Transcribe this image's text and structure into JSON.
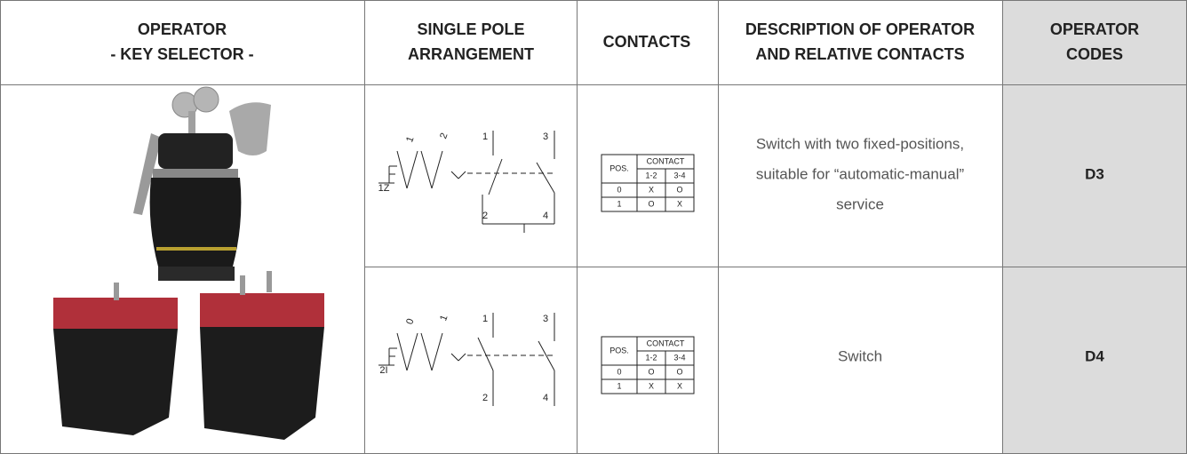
{
  "table": {
    "headers": [
      [
        "OPERATOR",
        "- KEY SELECTOR -"
      ],
      [
        "SINGLE POLE",
        "ARRANGEMENT"
      ],
      [
        "CONTACTS"
      ],
      [
        "DESCRIPTION OF OPERATOR",
        "AND RELATIVE CONTACTS"
      ],
      [
        "OPERATOR",
        "CODES"
      ]
    ],
    "rows": [
      {
        "arrangement": {
          "positions": [
            "1",
            "2"
          ],
          "code": "1Z",
          "terminals": [
            "1",
            "3",
            "2",
            "4"
          ]
        },
        "contacts": {
          "pos_header": "POS.",
          "contact_header": "CONTACT",
          "pairs": [
            "1-2",
            "3-4"
          ],
          "states": [
            [
              "0",
              "X",
              "O"
            ],
            [
              "1",
              "O",
              "X"
            ]
          ]
        },
        "description": [
          "Switch with two fixed-positions,",
          "suitable for “automatic-manual”",
          "service"
        ],
        "code": "D3"
      },
      {
        "arrangement": {
          "positions": [
            "0",
            "1"
          ],
          "code": "2I",
          "terminals": [
            "1",
            "3",
            "2",
            "4"
          ]
        },
        "contacts": {
          "pos_header": "POS.",
          "contact_header": "CONTACT",
          "pairs": [
            "1-2",
            "3-4"
          ],
          "states": [
            [
              "0",
              "O",
              "O"
            ],
            [
              "1",
              "X",
              "X"
            ]
          ]
        },
        "description": [
          "Switch"
        ],
        "code": "D4"
      }
    ]
  }
}
